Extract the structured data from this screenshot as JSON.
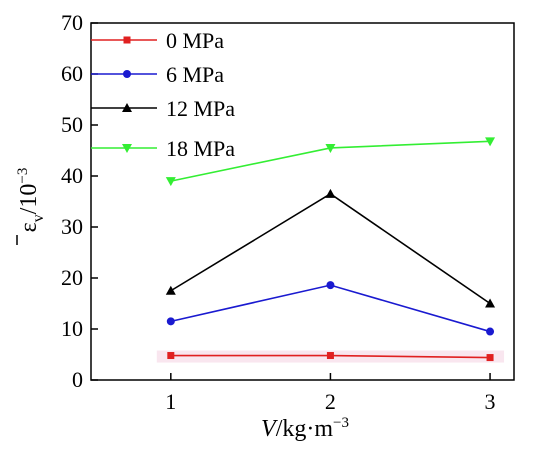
{
  "chart_data": {
    "type": "line",
    "xlabel": {
      "italic": "V",
      "rest": "/kg·m",
      "sup": "−3"
    },
    "ylabel": {
      "symbol": "ε",
      "sub": "v",
      "rest": "/10",
      "sup": "−3",
      "overbar": true
    },
    "x": [
      1,
      2,
      3
    ],
    "xlim": [
      0.5,
      3.15
    ],
    "ylim": [
      0,
      70
    ],
    "xticks": [
      "1",
      "2",
      "3"
    ],
    "yticks": [
      "0",
      "10",
      "20",
      "30",
      "40",
      "50",
      "60",
      "70"
    ],
    "legend_position": "top-left",
    "grid": false,
    "series": [
      {
        "name": "0 MPa",
        "values": [
          4.8,
          4.8,
          4.4
        ],
        "color": "#e02020",
        "marker": "square"
      },
      {
        "name": "6 MPa",
        "values": [
          11.5,
          18.6,
          9.5
        ],
        "color": "#1a1ad0",
        "marker": "circle"
      },
      {
        "name": "12 MPa",
        "values": [
          17.5,
          36.5,
          15
        ],
        "color": "#000000",
        "marker": "triangle-up"
      },
      {
        "name": "18 MPa",
        "values": [
          39,
          45.5,
          46.8
        ],
        "color": "#33ee33",
        "marker": "triangle-down"
      }
    ]
  }
}
